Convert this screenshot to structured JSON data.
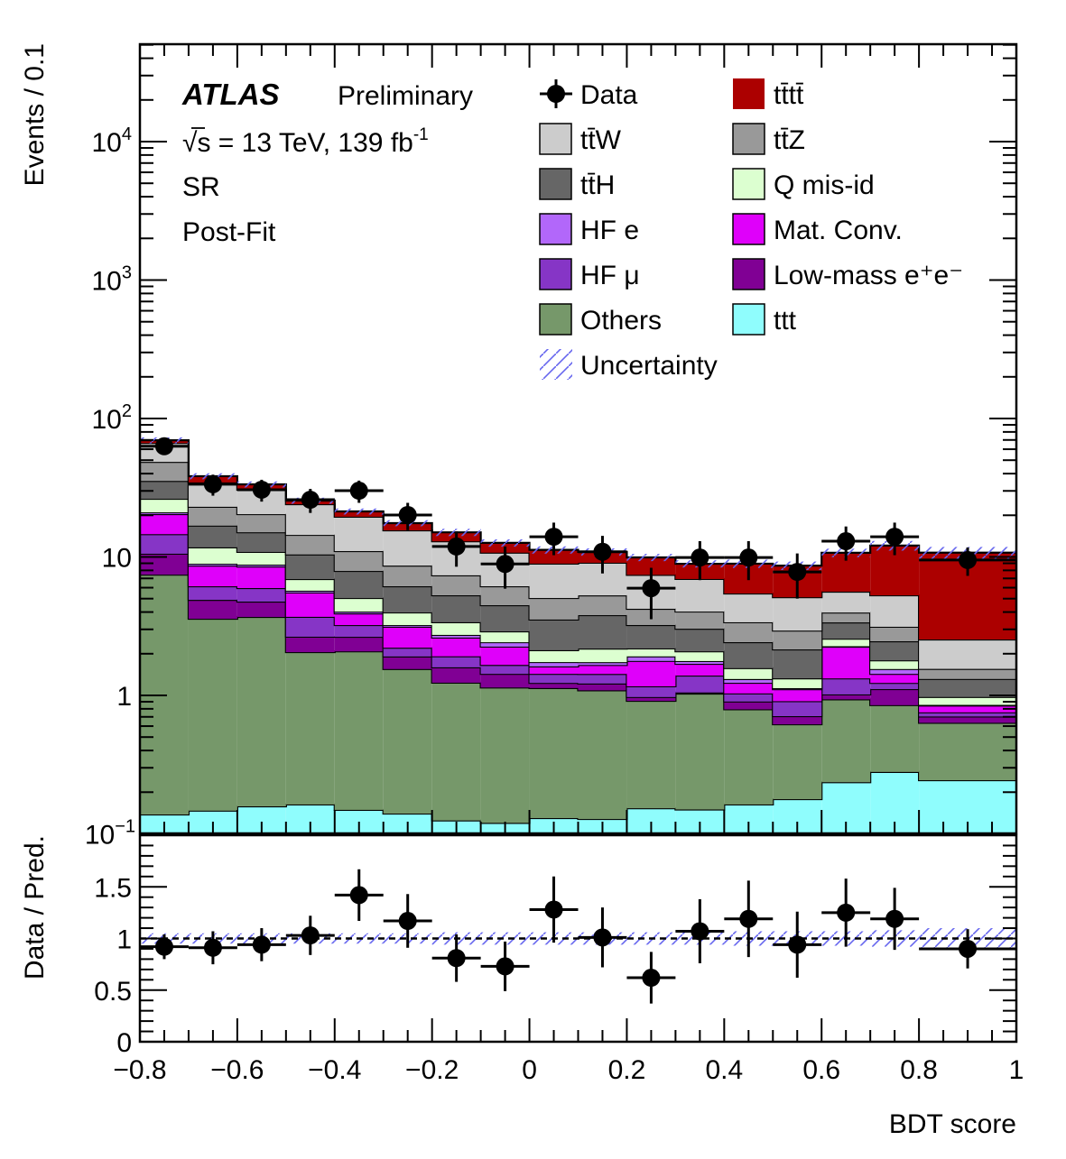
{
  "chart_data": {
    "type": "bar",
    "stacked": true,
    "yscale": "log",
    "title": "",
    "xlabel": "BDT score",
    "ylabel": "Events / 0.1",
    "ratio_ylabel": "Data / Pred.",
    "xlim": [
      -0.8,
      1.0
    ],
    "ylim": [
      0.1,
      50000
    ],
    "ratio_ylim": [
      0,
      2
    ],
    "x_ticks": [
      "−0.8",
      "−0.6",
      "−0.4",
      "−0.2",
      "0",
      "0.2",
      "0.4",
      "0.6",
      "0.8",
      "1"
    ],
    "x_tick_values": [
      -0.8,
      -0.6,
      -0.4,
      -0.2,
      0,
      0.2,
      0.4,
      0.6,
      0.8,
      1.0
    ],
    "y_ticks": [
      {
        "value": 0.1,
        "base": "10",
        "exp": "−1"
      },
      {
        "value": 1,
        "base": "1",
        "exp": ""
      },
      {
        "value": 10,
        "base": "10",
        "exp": ""
      },
      {
        "value": 100,
        "base": "10",
        "exp": "2"
      },
      {
        "value": 1000,
        "base": "10",
        "exp": "3"
      },
      {
        "value": 10000,
        "base": "10",
        "exp": "4"
      }
    ],
    "ratio_y_ticks": [
      "0",
      "0.5",
      "1",
      "1.5"
    ],
    "ratio_y_tick_values": [
      0,
      0.5,
      1,
      1.5
    ],
    "bin_edges": [
      -0.8,
      -0.7,
      -0.6,
      -0.5,
      -0.4,
      -0.3,
      -0.2,
      -0.1,
      0.0,
      0.1,
      0.2,
      0.3,
      0.4,
      0.5,
      0.6,
      0.7,
      0.8,
      1.0
    ],
    "series": [
      {
        "name": "ttt",
        "label": "ttt",
        "color": "#8ffdfd",
        "values": [
          0.138,
          0.147,
          0.158,
          0.163,
          0.149,
          0.14,
          0.125,
          0.12,
          0.13,
          0.128,
          0.153,
          0.15,
          0.163,
          0.178,
          0.236,
          0.28,
          0.244
        ]
      },
      {
        "name": "Others",
        "label": "Others",
        "color": "#76986a",
        "values": [
          7.31,
          3.43,
          3.53,
          1.89,
          1.93,
          1.41,
          1.11,
          1.02,
          1.0,
          0.96,
          0.76,
          0.88,
          0.63,
          0.44,
          0.7,
          0.57,
          0.39
        ]
      },
      {
        "name": "Low-mass ee",
        "label": "Low-mass e⁺e⁻",
        "color": "#800094",
        "values": [
          3.1,
          1.32,
          1.07,
          0.6,
          0.57,
          0.36,
          0.36,
          0.29,
          0.1,
          0.13,
          0.06,
          0.02,
          0.11,
          0.09,
          0.08,
          0.26,
          0.07
        ]
      },
      {
        "name": "HF mu",
        "label": "HF μ",
        "color": "#8635c6",
        "values": [
          4.05,
          1.24,
          1.2,
          1.04,
          0.57,
          0.3,
          0.32,
          0.23,
          0.2,
          0.21,
          0.19,
          0.34,
          0.13,
          0.2,
          0.31,
          0.12,
          0.05
        ]
      },
      {
        "name": "Mat. Conv.",
        "label": "Mat. Conv.",
        "color": "#df00fa",
        "values": [
          5.8,
          2.52,
          2.57,
          1.84,
          0.69,
          0.92,
          0.7,
          0.59,
          0.19,
          0.23,
          0.61,
          0.3,
          0.2,
          0.2,
          0.92,
          0.2,
          0.09
        ]
      },
      {
        "name": "HF e",
        "label": "HF e",
        "color": "#b267fa",
        "values": [
          0.6,
          0.27,
          0.27,
          0.17,
          0.12,
          0.09,
          0.12,
          0.17,
          0.12,
          0.08,
          0.14,
          0.08,
          0.08,
          0.02,
          0.02,
          0.12,
          0.01
        ]
      },
      {
        "name": "Q mis-id",
        "label": "Q mis-id",
        "color": "#dcffd0",
        "values": [
          5.3,
          2.8,
          2.07,
          1.22,
          1.02,
          0.75,
          0.64,
          0.48,
          0.38,
          0.44,
          0.27,
          0.31,
          0.26,
          0.2,
          0.3,
          0.24,
          0.12
        ]
      },
      {
        "name": "ttH",
        "label": "tt̄H",
        "color": "#666666",
        "values": [
          9.1,
          5.1,
          4.2,
          3.5,
          2.87,
          2.17,
          1.91,
          1.58,
          1.41,
          1.62,
          1.04,
          0.95,
          0.85,
          0.82,
          0.8,
          0.67,
          0.34
        ]
      },
      {
        "name": "ttZ",
        "label": "tt̄Z",
        "color": "#999999",
        "values": [
          13.2,
          6.2,
          5.3,
          4.0,
          3.1,
          2.52,
          2.08,
          1.66,
          1.52,
          1.48,
          1.0,
          1.0,
          0.95,
          0.79,
          0.6,
          0.67,
          0.24
        ]
      },
      {
        "name": "ttW",
        "label": "tt̄W",
        "color": "#cccccc",
        "values": [
          17.9,
          11.5,
          10.2,
          9.6,
          8.5,
          6.9,
          5.6,
          4.6,
          3.9,
          3.8,
          3.2,
          2.9,
          2.07,
          2.18,
          1.65,
          2.15,
          0.98
        ]
      },
      {
        "name": "tttt",
        "label": "tt̄tt̄",
        "color": "#ac0000",
        "values": [
          3.1,
          3.8,
          2.9,
          1.5,
          1.8,
          2.0,
          2.1,
          1.9,
          2.3,
          1.8,
          2.5,
          2.0,
          3.5,
          3.54,
          5.1,
          6.8,
          8.2
        ]
      }
    ],
    "data": {
      "name": "Data",
      "x": [
        -0.75,
        -0.65,
        -0.55,
        -0.45,
        -0.35,
        -0.25,
        -0.15,
        -0.05,
        0.05,
        0.15,
        0.25,
        0.35,
        0.45,
        0.55,
        0.65,
        0.75,
        0.9
      ],
      "values": [
        63,
        33.5,
        30.6,
        25.9,
        30.1,
        20.1,
        11.9,
        8.9,
        14.0,
        10.9,
        5.95,
        9.9,
        9.9,
        7.8,
        13.0,
        14.0,
        9.5
      ],
      "errors": [
        8.0,
        5.8,
        5.5,
        5.1,
        5.5,
        4.5,
        3.4,
        3.0,
        3.7,
        3.3,
        2.4,
        3.1,
        3.1,
        2.8,
        3.6,
        3.7,
        2.2
      ]
    },
    "uncertainty_band": {
      "label": "Uncertainty",
      "relative": [
        0.05,
        0.05,
        0.05,
        0.05,
        0.05,
        0.05,
        0.06,
        0.06,
        0.06,
        0.06,
        0.06,
        0.06,
        0.07,
        0.07,
        0.07,
        0.08,
        0.1
      ]
    },
    "ratio": {
      "values": [
        0.92,
        0.91,
        0.94,
        1.03,
        1.42,
        1.17,
        0.81,
        0.73,
        1.28,
        1.01,
        0.62,
        1.07,
        1.19,
        0.94,
        1.25,
        1.19,
        0.9
      ],
      "errors": [
        0.12,
        0.16,
        0.16,
        0.19,
        0.25,
        0.26,
        0.23,
        0.24,
        0.32,
        0.29,
        0.25,
        0.31,
        0.37,
        0.32,
        0.33,
        0.3,
        0.19
      ],
      "reference_line": 1.0
    },
    "legend_placement": "top-right",
    "annotations": {
      "experiment": "ATLAS",
      "status": "Preliminary",
      "energy_lumi": "√s = 13 TeV, 139 fb",
      "lumi_exp": "-1",
      "region": "SR",
      "fit_state": "Post-Fit"
    },
    "legend": [
      {
        "key": "data",
        "label": "Data"
      },
      {
        "key": "tttt",
        "label": "tt̄tt̄",
        "color": "#ac0000"
      },
      {
        "key": "ttW",
        "label": "tt̄W",
        "color": "#cccccc"
      },
      {
        "key": "ttZ",
        "label": "tt̄Z",
        "color": "#999999"
      },
      {
        "key": "ttH",
        "label": "tt̄H",
        "color": "#666666"
      },
      {
        "key": "qmisid",
        "label": "Q mis-id",
        "color": "#dcffd0"
      },
      {
        "key": "hfe",
        "label": "HF e",
        "color": "#b267fa"
      },
      {
        "key": "matconv",
        "label": "Mat. Conv.",
        "color": "#df00fa"
      },
      {
        "key": "hfmu",
        "label": "HF μ",
        "color": "#8635c6"
      },
      {
        "key": "lowmass",
        "label": "Low-mass e⁺e⁻",
        "color": "#800094"
      },
      {
        "key": "others",
        "label": "Others",
        "color": "#76986a"
      },
      {
        "key": "ttt",
        "label": "ttt",
        "color": "#8ffdfd"
      },
      {
        "key": "unc",
        "label": "Uncertainty"
      }
    ],
    "grid": false
  }
}
